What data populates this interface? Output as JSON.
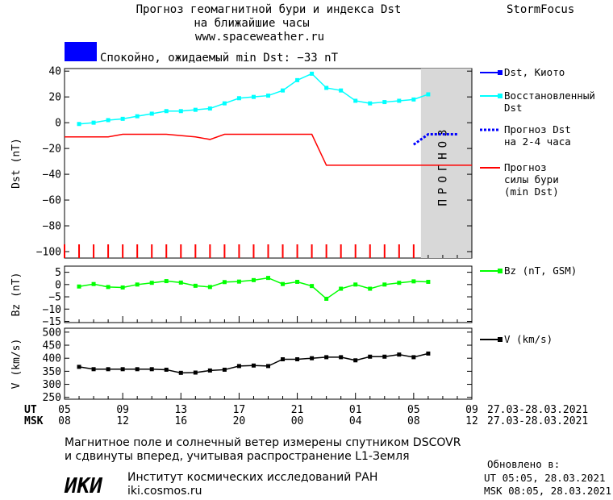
{
  "header": {
    "title_line1": "Прогноз геомагнитной бури и индекса Dst",
    "title_line2": "на ближайшие часы",
    "website": "www.spaceweather.ru",
    "brand": "StormFocus"
  },
  "status": {
    "color": "#0000ff",
    "text": "Спокойно, ожидаемый min Dst: −33 nT"
  },
  "forecast_band_label": "ПРОГНОЗ",
  "legend": {
    "dst_kyoto": [
      "Dst, Киото"
    ],
    "dst_restored": [
      "Восстановленный",
      "Dst"
    ],
    "dst_forecast": [
      "Прогноз Dst",
      "на 2-4 часа"
    ],
    "storm_forecast": [
      "Прогноз",
      "силы бури",
      "(min Dst)"
    ],
    "bz": [
      "Bz (nT, GSM)"
    ],
    "v": [
      "V (km/s)"
    ]
  },
  "axis_labels": {
    "dst": "Dst (nT)",
    "bz": "Bz (nT)",
    "v": "V (km/s)"
  },
  "time_axis": {
    "ut_label": "UT",
    "msk_label": "MSK",
    "ut_ticks": [
      "05",
      "09",
      "13",
      "17",
      "21",
      "01",
      "05",
      "09"
    ],
    "msk_ticks": [
      "08",
      "12",
      "16",
      "20",
      "00",
      "04",
      "08",
      "12"
    ],
    "ut_range": "27.03-28.03.2021",
    "msk_range": "27.03-28.03.2021"
  },
  "chart_data": [
    {
      "type": "line",
      "panel": "dst",
      "ylabel": "Dst (nT)",
      "ylim": [
        -105,
        42
      ],
      "yticks": [
        40,
        20,
        0,
        -20,
        -40,
        -60,
        -80,
        -100
      ],
      "x_hours_range": [
        0,
        28
      ],
      "forecast_region_hours": [
        24.5,
        28
      ],
      "series": [
        {
          "name": "Восстановленный Dst",
          "color": "#00ffff",
          "x": [
            1,
            2,
            3,
            4,
            5,
            6,
            7,
            8,
            9,
            10,
            11,
            12,
            13,
            14,
            15,
            16,
            17,
            18,
            19,
            20,
            21,
            22,
            23,
            24,
            25
          ],
          "values": [
            -1,
            0,
            2,
            3,
            5,
            7,
            9,
            9,
            10,
            11,
            15,
            19,
            20,
            21,
            25,
            33,
            38,
            27,
            25,
            17,
            15,
            16,
            17,
            18,
            22
          ]
        },
        {
          "name": "Прогноз силы бури (min Dst)",
          "color": "#ff0000",
          "x": [
            0,
            3,
            4,
            7,
            9,
            10,
            11,
            16,
            17,
            18,
            28
          ],
          "values": [
            -11,
            -11,
            -9,
            -9,
            -11,
            -13,
            -9,
            -9,
            -9,
            -33,
            -33
          ]
        },
        {
          "name": "Прогноз Dst на 2-4 часа",
          "color": "#0000ff",
          "x": [
            24,
            25,
            26,
            27
          ],
          "values": [
            -17,
            -9,
            -9,
            -9
          ]
        }
      ],
      "tick_marks_color": "#ff0000"
    },
    {
      "type": "line",
      "panel": "bz",
      "ylabel": "Bz (nT)",
      "ylim": [
        -15.5,
        7.5
      ],
      "yticks": [
        5,
        0,
        -5,
        -10,
        -15
      ],
      "series": [
        {
          "name": "Bz (nT, GSM)",
          "color": "#00ff00",
          "x": [
            1,
            2,
            3,
            4,
            5,
            6,
            7,
            8,
            9,
            10,
            11,
            12,
            13,
            14,
            15,
            16,
            17,
            18,
            19,
            20,
            21,
            22,
            23,
            24,
            25
          ],
          "values": [
            -0.8,
            0.2,
            -1,
            -1.2,
            0,
            0.7,
            1.4,
            0.8,
            -0.5,
            -1,
            1,
            1.2,
            1.8,
            2.7,
            0.2,
            1.1,
            -0.6,
            -5.8,
            -1.7,
            0,
            -1.7,
            0,
            0.7,
            1.3,
            1.1
          ]
        }
      ]
    },
    {
      "type": "line",
      "panel": "v",
      "ylabel": "V (km/s)",
      "ylim": [
        243,
        515
      ],
      "yticks": [
        500,
        450,
        400,
        350,
        300,
        250
      ],
      "series": [
        {
          "name": "V (km/s)",
          "color": "#000000",
          "x": [
            1,
            2,
            3,
            4,
            5,
            6,
            7,
            8,
            9,
            10,
            11,
            12,
            13,
            14,
            15,
            16,
            17,
            18,
            19,
            20,
            21,
            22,
            23,
            24,
            25
          ],
          "values": [
            367,
            358,
            358,
            358,
            358,
            358,
            356,
            344,
            345,
            353,
            356,
            370,
            372,
            370,
            396,
            396,
            400,
            404,
            404,
            392,
            406,
            406,
            414,
            404,
            418
          ]
        }
      ]
    }
  ],
  "footer": {
    "note_line1": "Магнитное поле и солнечный ветер измерены спутником DSCOVR",
    "note_line2": "и сдвинуты вперед, учитывая распространение L1-Земля",
    "org_logo": "ИКИ",
    "org_name": "Институт космических исследований РАН",
    "org_site": "iki.cosmos.ru",
    "updated_label": "Обновлено в:",
    "updated_ut": "UT  05:05, 28.03.2021",
    "updated_msk": "MSK 08:05, 28.03.2021"
  }
}
